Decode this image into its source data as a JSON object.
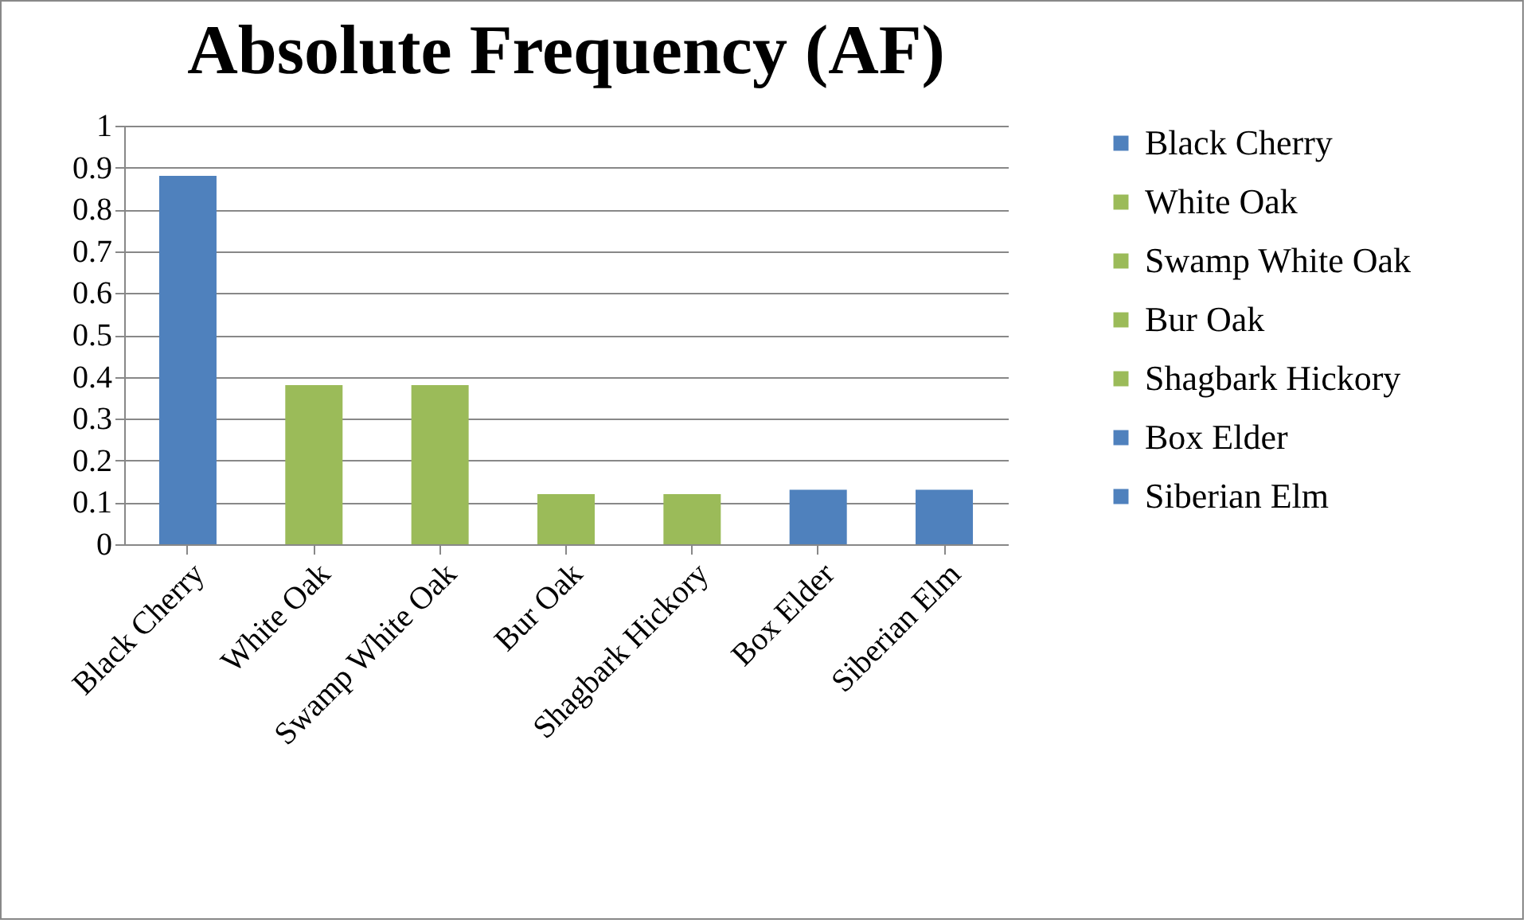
{
  "chart_data": {
    "type": "bar",
    "title": "Absolute Frequency (AF)",
    "categories": [
      "Black Cherry",
      "White Oak",
      "Swamp White Oak",
      "Bur Oak",
      "Shagbark Hickory",
      "Box Elder",
      "Siberian Elm"
    ],
    "stacked": true,
    "series": [
      {
        "name": "Black Cherry",
        "color": "#4f81bd",
        "values": [
          0.88,
          null,
          null,
          null,
          null,
          null,
          null
        ]
      },
      {
        "name": "White Oak",
        "color": "#9bbb59",
        "values": [
          null,
          0.38,
          null,
          null,
          null,
          null,
          null
        ]
      },
      {
        "name": "Swamp White Oak",
        "color": "#9bbb59",
        "values": [
          null,
          null,
          0.38,
          null,
          null,
          null,
          null
        ]
      },
      {
        "name": "Bur Oak",
        "color": "#9bbb59",
        "values": [
          null,
          null,
          null,
          0.12,
          null,
          null,
          null
        ]
      },
      {
        "name": "Shagbark Hickory",
        "color": "#9bbb59",
        "values": [
          null,
          null,
          null,
          null,
          0.12,
          null,
          null
        ]
      },
      {
        "name": "Box Elder",
        "color": "#4f81bd",
        "values": [
          null,
          null,
          null,
          null,
          null,
          0.13,
          null
        ]
      },
      {
        "name": "Siberian Elm",
        "color": "#4f81bd",
        "values": [
          null,
          null,
          null,
          null,
          null,
          null,
          0.13
        ]
      }
    ],
    "ylim": [
      0,
      1
    ],
    "yticks": [
      0,
      0.1,
      0.2,
      0.3,
      0.4,
      0.5,
      0.6,
      0.7,
      0.8,
      0.9,
      1
    ],
    "grid": "y",
    "legend": "right"
  }
}
